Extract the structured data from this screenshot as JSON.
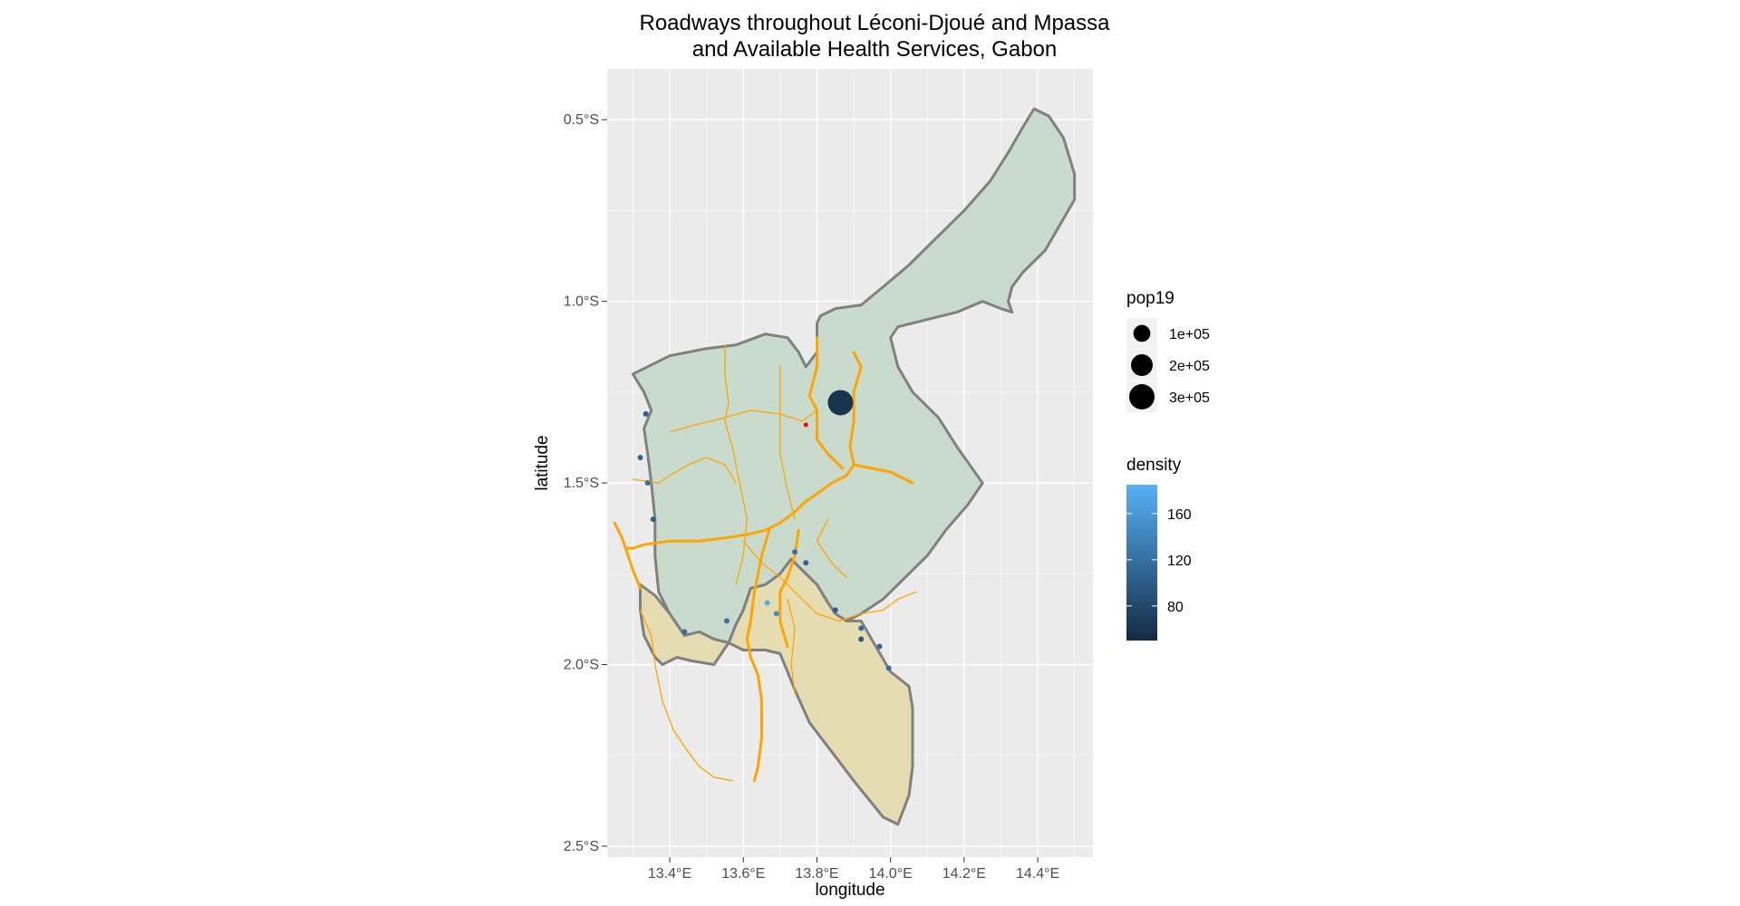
{
  "chart_data": {
    "type": "map",
    "title": [
      "Roadways throughout Léconi-Djoué and Mpassa",
      "and Available Health Services, Gabon"
    ],
    "xlabel": "longitude",
    "ylabel": "latitude",
    "xlim": [
      13.23,
      14.55
    ],
    "ylim": [
      -2.53,
      -0.36
    ],
    "x_ticks": [
      {
        "value": 13.4,
        "label": "13.4°E"
      },
      {
        "value": 13.6,
        "label": "13.6°E"
      },
      {
        "value": 13.8,
        "label": "13.8°E"
      },
      {
        "value": 14.0,
        "label": "14.0°E"
      },
      {
        "value": 14.2,
        "label": "14.2°E"
      },
      {
        "value": 14.4,
        "label": "14.4°E"
      }
    ],
    "y_ticks": [
      {
        "value": -0.5,
        "label": "0.5°S"
      },
      {
        "value": -1.0,
        "label": "1.0°S"
      },
      {
        "value": -1.5,
        "label": "1.5°S"
      },
      {
        "value": -2.0,
        "label": "2.0°S"
      },
      {
        "value": -2.5,
        "label": "2.5°S"
      }
    ],
    "colors": {
      "panel": "#ebebeb",
      "grid": "#ffffff",
      "region_fill_north": "#c9dbcd",
      "region_fill_south": "#e5dcb2",
      "region_border": "#808080",
      "road": "#ffa500",
      "health_site_red": "#ff0000"
    },
    "regions": [
      {
        "fill": "north",
        "coords": [
          [
            14.39,
            -0.47
          ],
          [
            14.43,
            -0.49
          ],
          [
            14.47,
            -0.55
          ],
          [
            14.5,
            -0.65
          ],
          [
            14.5,
            -0.72
          ],
          [
            14.46,
            -0.79
          ],
          [
            14.42,
            -0.86
          ],
          [
            14.36,
            -0.92
          ],
          [
            14.33,
            -0.96
          ],
          [
            14.32,
            -1.0
          ],
          [
            14.33,
            -1.03
          ],
          [
            14.3,
            -1.02
          ],
          [
            14.25,
            -1.0
          ],
          [
            14.18,
            -1.03
          ],
          [
            14.1,
            -1.05
          ],
          [
            14.02,
            -1.07
          ],
          [
            14.0,
            -1.1
          ],
          [
            14.02,
            -1.18
          ],
          [
            14.06,
            -1.25
          ],
          [
            14.13,
            -1.32
          ],
          [
            14.18,
            -1.4
          ],
          [
            14.25,
            -1.5
          ],
          [
            14.21,
            -1.56
          ],
          [
            14.15,
            -1.63
          ],
          [
            14.1,
            -1.7
          ],
          [
            14.04,
            -1.76
          ],
          [
            13.98,
            -1.82
          ],
          [
            13.92,
            -1.86
          ],
          [
            13.88,
            -1.88
          ],
          [
            13.85,
            -1.86
          ],
          [
            13.83,
            -1.83
          ],
          [
            13.8,
            -1.78
          ],
          [
            13.76,
            -1.74
          ],
          [
            13.73,
            -1.71
          ],
          [
            13.7,
            -1.75
          ],
          [
            13.66,
            -1.78
          ],
          [
            13.62,
            -1.79
          ],
          [
            13.6,
            -1.85
          ],
          [
            13.58,
            -1.89
          ],
          [
            13.56,
            -1.94
          ],
          [
            13.52,
            -1.93
          ],
          [
            13.48,
            -1.91
          ],
          [
            13.44,
            -1.92
          ],
          [
            13.4,
            -1.86
          ],
          [
            13.37,
            -1.8
          ],
          [
            13.36,
            -1.7
          ],
          [
            13.36,
            -1.6
          ],
          [
            13.35,
            -1.5
          ],
          [
            13.34,
            -1.42
          ],
          [
            13.33,
            -1.35
          ],
          [
            13.35,
            -1.3
          ],
          [
            13.33,
            -1.25
          ],
          [
            13.3,
            -1.2
          ],
          [
            13.34,
            -1.18
          ],
          [
            13.4,
            -1.15
          ],
          [
            13.5,
            -1.13
          ],
          [
            13.58,
            -1.12
          ],
          [
            13.66,
            -1.09
          ],
          [
            13.72,
            -1.1
          ],
          [
            13.75,
            -1.14
          ],
          [
            13.77,
            -1.18
          ],
          [
            13.8,
            -1.14
          ],
          [
            13.8,
            -1.06
          ],
          [
            13.81,
            -1.04
          ],
          [
            13.85,
            -1.02
          ],
          [
            13.92,
            -1.01
          ],
          [
            13.98,
            -0.96
          ],
          [
            14.05,
            -0.9
          ],
          [
            14.12,
            -0.83
          ],
          [
            14.2,
            -0.75
          ],
          [
            14.27,
            -0.67
          ],
          [
            14.32,
            -0.59
          ],
          [
            14.36,
            -0.52
          ],
          [
            14.39,
            -0.47
          ]
        ]
      },
      {
        "fill": "south",
        "coords": [
          [
            13.32,
            -1.78
          ],
          [
            13.36,
            -1.81
          ],
          [
            13.4,
            -1.86
          ],
          [
            13.44,
            -1.92
          ],
          [
            13.48,
            -1.91
          ],
          [
            13.52,
            -1.93
          ],
          [
            13.56,
            -1.94
          ],
          [
            13.58,
            -1.89
          ],
          [
            13.6,
            -1.85
          ],
          [
            13.62,
            -1.79
          ],
          [
            13.66,
            -1.78
          ],
          [
            13.7,
            -1.75
          ],
          [
            13.73,
            -1.71
          ],
          [
            13.76,
            -1.74
          ],
          [
            13.8,
            -1.78
          ],
          [
            13.83,
            -1.83
          ],
          [
            13.85,
            -1.86
          ],
          [
            13.88,
            -1.88
          ],
          [
            13.92,
            -1.88
          ],
          [
            13.96,
            -1.95
          ],
          [
            14.0,
            -2.02
          ],
          [
            14.05,
            -2.06
          ],
          [
            14.06,
            -2.12
          ],
          [
            14.06,
            -2.2
          ],
          [
            14.06,
            -2.28
          ],
          [
            14.05,
            -2.36
          ],
          [
            14.02,
            -2.44
          ],
          [
            13.98,
            -2.42
          ],
          [
            13.9,
            -2.32
          ],
          [
            13.84,
            -2.24
          ],
          [
            13.78,
            -2.16
          ],
          [
            13.74,
            -2.07
          ],
          [
            13.72,
            -2.02
          ],
          [
            13.7,
            -1.97
          ],
          [
            13.66,
            -1.96
          ],
          [
            13.6,
            -1.96
          ],
          [
            13.56,
            -1.94
          ],
          [
            13.52,
            -2.0
          ],
          [
            13.46,
            -1.99
          ],
          [
            13.42,
            -1.98
          ],
          [
            13.38,
            -2.0
          ],
          [
            13.36,
            -1.98
          ],
          [
            13.33,
            -1.92
          ],
          [
            13.32,
            -1.85
          ],
          [
            13.32,
            -1.78
          ]
        ]
      }
    ],
    "roads": [
      {
        "major": true,
        "coords": [
          [
            13.25,
            -1.61
          ],
          [
            13.27,
            -1.65
          ],
          [
            13.28,
            -1.68
          ],
          [
            13.3,
            -1.68
          ],
          [
            13.33,
            -1.67
          ],
          [
            13.4,
            -1.66
          ],
          [
            13.48,
            -1.66
          ],
          [
            13.56,
            -1.65
          ],
          [
            13.62,
            -1.64
          ],
          [
            13.66,
            -1.63
          ],
          [
            13.7,
            -1.61
          ],
          [
            13.74,
            -1.58
          ],
          [
            13.77,
            -1.55
          ],
          [
            13.8,
            -1.53
          ],
          [
            13.84,
            -1.5
          ],
          [
            13.88,
            -1.48
          ],
          [
            13.9,
            -1.45
          ],
          [
            13.95,
            -1.46
          ],
          [
            14.0,
            -1.47
          ],
          [
            14.06,
            -1.5
          ]
        ]
      },
      {
        "major": true,
        "coords": [
          [
            13.9,
            -1.45
          ],
          [
            13.89,
            -1.4
          ],
          [
            13.9,
            -1.33
          ],
          [
            13.9,
            -1.25
          ],
          [
            13.92,
            -1.18
          ],
          [
            13.9,
            -1.14
          ]
        ]
      },
      {
        "major": true,
        "coords": [
          [
            13.87,
            -1.46
          ],
          [
            13.83,
            -1.42
          ],
          [
            13.8,
            -1.38
          ],
          [
            13.8,
            -1.3
          ],
          [
            13.78,
            -1.26
          ],
          [
            13.8,
            -1.18
          ],
          [
            13.8,
            -1.1
          ]
        ]
      },
      {
        "major": true,
        "coords": [
          [
            13.28,
            -1.68
          ],
          [
            13.3,
            -1.74
          ],
          [
            13.32,
            -1.79
          ]
        ]
      },
      {
        "major": true,
        "coords": [
          [
            13.67,
            -1.63
          ],
          [
            13.65,
            -1.7
          ],
          [
            13.64,
            -1.75
          ],
          [
            13.63,
            -1.8
          ],
          [
            13.62,
            -1.88
          ],
          [
            13.61,
            -1.93
          ],
          [
            13.62,
            -1.98
          ],
          [
            13.64,
            -2.03
          ],
          [
            13.65,
            -2.1
          ],
          [
            13.65,
            -2.2
          ],
          [
            13.64,
            -2.28
          ],
          [
            13.63,
            -2.32
          ]
        ]
      },
      {
        "major": true,
        "coords": [
          [
            13.75,
            -1.63
          ],
          [
            13.74,
            -1.7
          ],
          [
            13.72,
            -1.76
          ],
          [
            13.7,
            -1.8
          ],
          [
            13.7,
            -1.88
          ],
          [
            13.72,
            -1.95
          ]
        ]
      },
      {
        "major": false,
        "coords": [
          [
            13.4,
            -1.36
          ],
          [
            13.47,
            -1.34
          ],
          [
            13.55,
            -1.32
          ],
          [
            13.62,
            -1.3
          ],
          [
            13.7,
            -1.31
          ],
          [
            13.76,
            -1.33
          ],
          [
            13.8,
            -1.3
          ]
        ]
      },
      {
        "major": false,
        "coords": [
          [
            13.55,
            -1.12
          ],
          [
            13.55,
            -1.2
          ],
          [
            13.56,
            -1.28
          ],
          [
            13.55,
            -1.33
          ],
          [
            13.57,
            -1.4
          ],
          [
            13.59,
            -1.5
          ],
          [
            13.61,
            -1.6
          ],
          [
            13.6,
            -1.7
          ],
          [
            13.58,
            -1.78
          ]
        ]
      },
      {
        "major": false,
        "coords": [
          [
            13.7,
            -1.18
          ],
          [
            13.7,
            -1.3
          ],
          [
            13.7,
            -1.42
          ],
          [
            13.72,
            -1.52
          ],
          [
            13.74,
            -1.6
          ]
        ]
      },
      {
        "major": false,
        "coords": [
          [
            13.3,
            -1.49
          ],
          [
            13.37,
            -1.5
          ],
          [
            13.4,
            -1.48
          ],
          [
            13.45,
            -1.45
          ],
          [
            13.5,
            -1.43
          ],
          [
            13.55,
            -1.45
          ],
          [
            13.58,
            -1.5
          ]
        ]
      },
      {
        "major": false,
        "coords": [
          [
            13.32,
            -1.85
          ],
          [
            13.35,
            -1.92
          ],
          [
            13.36,
            -2.0
          ],
          [
            13.38,
            -2.1
          ],
          [
            13.41,
            -2.18
          ],
          [
            13.45,
            -2.24
          ],
          [
            13.48,
            -2.28
          ],
          [
            13.52,
            -2.31
          ],
          [
            13.57,
            -2.32
          ]
        ]
      },
      {
        "major": false,
        "coords": [
          [
            13.6,
            -1.66
          ],
          [
            13.65,
            -1.72
          ],
          [
            13.7,
            -1.76
          ],
          [
            13.76,
            -1.82
          ],
          [
            13.8,
            -1.86
          ],
          [
            13.86,
            -1.88
          ],
          [
            13.92,
            -1.86
          ],
          [
            13.98,
            -1.85
          ],
          [
            14.02,
            -1.82
          ],
          [
            14.07,
            -1.8
          ]
        ]
      },
      {
        "major": false,
        "coords": [
          [
            13.72,
            -1.82
          ],
          [
            13.74,
            -1.9
          ],
          [
            13.73,
            -2.0
          ],
          [
            13.74,
            -2.08
          ]
        ]
      },
      {
        "major": false,
        "coords": [
          [
            13.83,
            -1.6
          ],
          [
            13.8,
            -1.66
          ],
          [
            13.84,
            -1.72
          ],
          [
            13.88,
            -1.76
          ]
        ]
      }
    ],
    "health_sites": [
      {
        "lon": 13.864,
        "lat": -1.279,
        "pop19": 300000,
        "density": 60
      },
      {
        "lon": 13.77,
        "lat": -1.34,
        "pop19": null,
        "density": null,
        "color": "red"
      },
      {
        "lon": 13.335,
        "lat": -1.31,
        "pop19": 0,
        "density": 100
      },
      {
        "lon": 13.32,
        "lat": -1.43,
        "pop19": 0,
        "density": 110
      },
      {
        "lon": 13.34,
        "lat": -1.5,
        "pop19": 0,
        "density": 120
      },
      {
        "lon": 13.355,
        "lat": -1.6,
        "pop19": 0,
        "density": 105
      },
      {
        "lon": 13.44,
        "lat": -1.91,
        "pop19": 0,
        "density": 115
      },
      {
        "lon": 13.555,
        "lat": -1.88,
        "pop19": 0,
        "density": 120
      },
      {
        "lon": 13.665,
        "lat": -1.83,
        "pop19": 0,
        "density": 180
      },
      {
        "lon": 13.69,
        "lat": -1.86,
        "pop19": 0,
        "density": 150
      },
      {
        "lon": 13.74,
        "lat": -1.69,
        "pop19": 0,
        "density": 120
      },
      {
        "lon": 13.77,
        "lat": -1.72,
        "pop19": 0,
        "density": 110
      },
      {
        "lon": 13.85,
        "lat": -1.85,
        "pop19": 0,
        "density": 100
      },
      {
        "lon": 13.92,
        "lat": -1.9,
        "pop19": 0,
        "density": 115
      },
      {
        "lon": 13.92,
        "lat": -1.93,
        "pop19": 0,
        "density": 100
      },
      {
        "lon": 13.97,
        "lat": -1.95,
        "pop19": 0,
        "density": 110
      },
      {
        "lon": 13.995,
        "lat": -2.01,
        "pop19": 0,
        "density": 120
      }
    ],
    "legend_pop19": {
      "title": "pop19",
      "entries": [
        {
          "label": "1e+05",
          "value": 100000
        },
        {
          "label": "2e+05",
          "value": 200000
        },
        {
          "label": "3e+05",
          "value": 300000
        }
      ]
    },
    "legend_density": {
      "title": "density",
      "range": [
        50,
        185
      ],
      "low_color": "#132b43",
      "high_color": "#56b1f7",
      "ticks": [
        {
          "label": "80",
          "value": 80
        },
        {
          "label": "120",
          "value": 120
        },
        {
          "label": "160",
          "value": 160
        }
      ]
    }
  }
}
